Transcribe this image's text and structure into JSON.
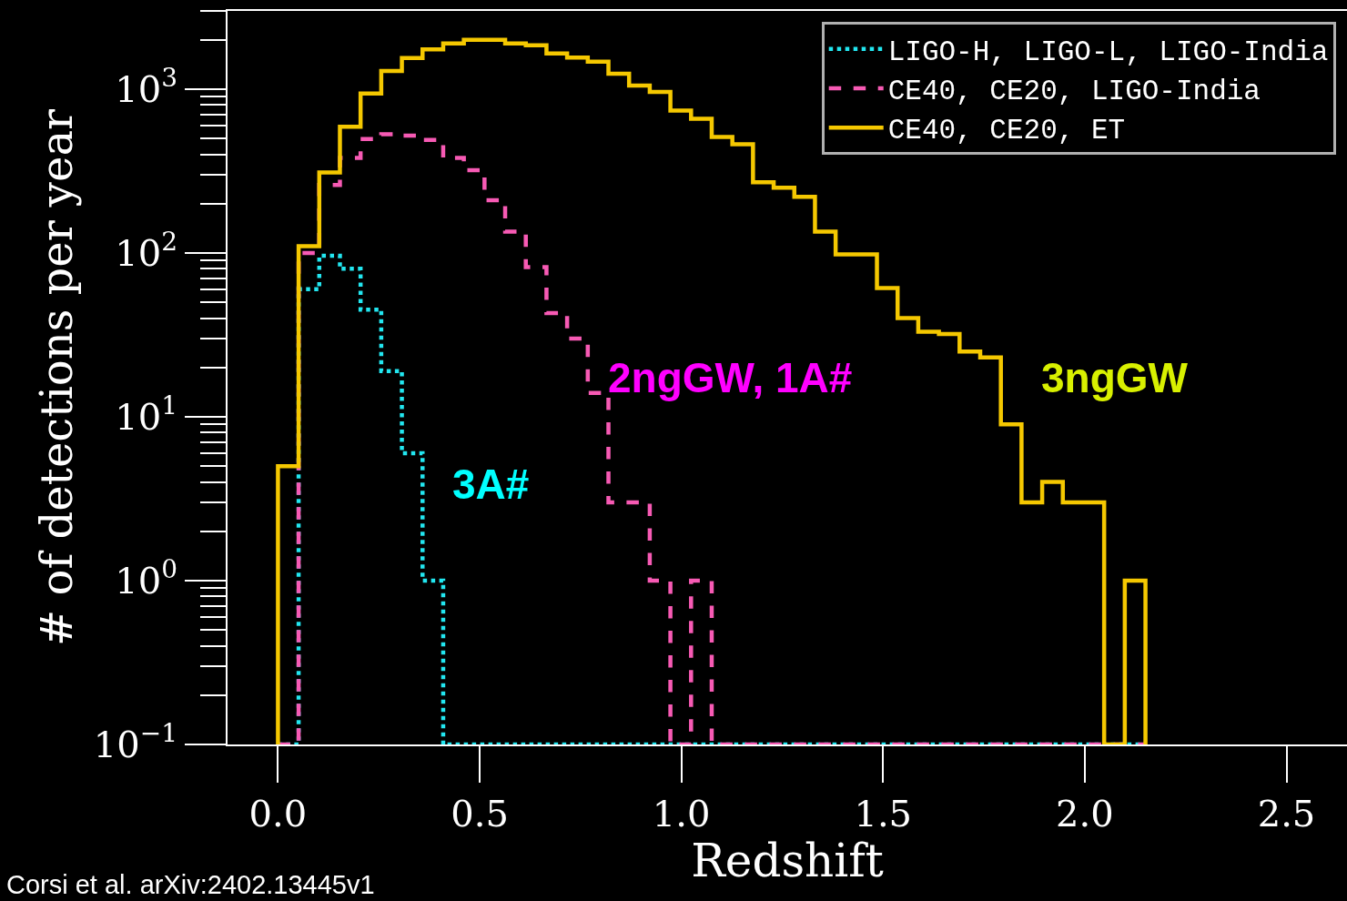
{
  "chart_data": {
    "type": "histogram",
    "xlabel": "Redshift",
    "ylabel": "# of detections per year",
    "bins": [
      0,
      0.0512,
      0.1024,
      0.1536,
      0.2048,
      0.256,
      0.3072,
      0.3584,
      0.4096,
      0.4608,
      0.512,
      0.5632,
      0.6144,
      0.6656,
      0.7168,
      0.768,
      0.8192,
      0.8704,
      0.9216,
      0.9728,
      1.024,
      1.0752,
      1.1264,
      1.1776,
      1.2288,
      1.28,
      1.3312,
      1.3824,
      1.4336,
      1.4848,
      1.536,
      1.5872,
      1.6384,
      1.6896,
      1.7408,
      1.792,
      1.8432,
      1.8944,
      1.9456,
      1.9968,
      2.048,
      2.0992,
      2.1504
    ],
    "series": [
      {
        "name": "LIGO-H, LIGO-L, LIGO-India",
        "color": "#22e6f0",
        "line_style": "dotted",
        "values": [
          null,
          60,
          96,
          80,
          45,
          19,
          6,
          1,
          null,
          null,
          null,
          null,
          null,
          null,
          null,
          null,
          null,
          null,
          null,
          null,
          null,
          null,
          null,
          null,
          null,
          null,
          null,
          null,
          null,
          null,
          null,
          null,
          null,
          null,
          null,
          null,
          null,
          null,
          null,
          null,
          null,
          null
        ]
      },
      {
        "name": "CE40, CE20, LIGO-India",
        "color": "#f75ab4",
        "line_style": "dashed",
        "values": [
          null,
          100,
          260,
          380,
          495,
          530,
          520,
          490,
          380,
          320,
          210,
          135,
          82,
          43,
          30,
          14,
          3,
          3,
          1,
          null,
          1,
          null,
          null,
          null,
          null,
          null,
          null,
          null,
          null,
          null,
          null,
          null,
          null,
          null,
          null,
          null,
          null,
          null,
          null,
          null,
          null,
          null
        ]
      },
      {
        "name": "CE40, CE20, ET",
        "color": "#f5c800",
        "line_style": "solid",
        "values": [
          5,
          110,
          310,
          590,
          940,
          1290,
          1550,
          1750,
          1900,
          2000,
          2000,
          1900,
          1850,
          1650,
          1560,
          1470,
          1240,
          1050,
          960,
          740,
          660,
          510,
          460,
          270,
          250,
          220,
          135,
          98,
          98,
          61,
          40,
          33,
          32,
          25,
          23,
          9,
          3,
          4,
          3,
          3,
          null,
          1
        ]
      }
    ],
    "log": "y",
    "xlim": [
      -0.125,
      2.65
    ],
    "ylim": [
      0.1,
      3000
    ],
    "xticks": [
      {
        "value": 0,
        "label": "0.0"
      },
      0.5,
      {
        "value": 1,
        "label": "1.0"
      },
      1.5,
      {
        "value": 2,
        "label": "2.0"
      },
      2.5
    ],
    "yticks": [
      {
        "value": 0.1,
        "label": "10$^{−1}$"
      },
      {
        "value": 1,
        "label": "10$^{0}$"
      },
      {
        "value": 10,
        "label": "10$^{1}$"
      },
      {
        "value": 100,
        "label": "10$^{2}$"
      },
      {
        "value": 1000,
        "label": "10$^{3}$"
      }
    ],
    "grid": false,
    "legend": "top right",
    "annotations": [
      "3A#",
      "2ngGW, 1A#",
      "3ngGW",
      "Corsi et al. arXiv:2402.13445v1"
    ]
  }
}
